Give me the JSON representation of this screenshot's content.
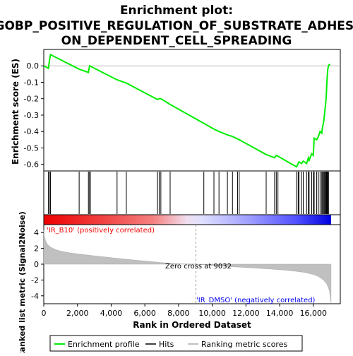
{
  "chart_data": {
    "type": "line",
    "title_lines": [
      "Enrichment plot:",
      "GOBP_POSITIVE_REGULATION_OF_SUBSTRATE_ADHESI",
      "ON_DEPENDENT_CELL_SPREADING"
    ],
    "top_panel": {
      "ylabel": "Enrichment score (ES)",
      "ylim": [
        -0.64,
        0.1
      ],
      "yticks": [
        0.0,
        -0.1,
        -0.2,
        -0.3,
        -0.4,
        -0.5,
        -0.6
      ],
      "ytick_labels": [
        "0.0",
        "-0.1",
        "-0.2",
        "-0.3",
        "-0.4",
        "-0.5",
        "-0.6"
      ],
      "series": [
        {
          "name": "Enrichment profile",
          "color": "#00ee00",
          "x": [
            0,
            280,
            330,
            400,
            2100,
            2650,
            2720,
            4350,
            4900,
            6750,
            6850,
            6950,
            7500,
            9500,
            10100,
            10400,
            10900,
            11200,
            11500,
            11600,
            13200,
            13700,
            13800,
            13900,
            15000,
            15100,
            15150,
            15300,
            15400,
            15600,
            15700,
            15750,
            15900,
            16000,
            16050,
            16200,
            16300,
            16400,
            16500,
            16550,
            16600,
            16650,
            16700,
            16750,
            16780,
            16800,
            16830,
            16860,
            16900,
            16950,
            17000
          ],
          "y": [
            0.0,
            -0.015,
            0.03,
            0.068,
            -0.02,
            -0.04,
            0.0,
            -0.085,
            -0.105,
            -0.205,
            -0.2,
            -0.2,
            -0.235,
            -0.35,
            -0.385,
            -0.4,
            -0.42,
            -0.43,
            -0.445,
            -0.45,
            -0.54,
            -0.56,
            -0.545,
            -0.55,
            -0.615,
            -0.595,
            -0.585,
            -0.595,
            -0.58,
            -0.595,
            -0.56,
            -0.575,
            -0.535,
            -0.545,
            -0.44,
            -0.45,
            -0.43,
            -0.4,
            -0.41,
            -0.37,
            -0.35,
            -0.31,
            -0.26,
            -0.21,
            -0.16,
            -0.11,
            -0.06,
            -0.02,
            0.0,
            0.008,
            0.005
          ]
        }
      ]
    },
    "hits": {
      "name": "Hits",
      "positions": [
        280,
        330,
        400,
        2100,
        2650,
        2720,
        2760,
        4350,
        4900,
        6750,
        6850,
        6950,
        7500,
        9500,
        10100,
        10400,
        10900,
        11200,
        11500,
        11600,
        13200,
        13700,
        13800,
        13900,
        15000,
        15100,
        15150,
        15300,
        15400,
        15600,
        15700,
        15750,
        15900,
        16000,
        16050,
        16200,
        16300,
        16400,
        16500,
        16550,
        16600,
        16650,
        16700,
        16750,
        16780,
        16800,
        16830,
        16860,
        16900
      ]
    },
    "bottom_panel": {
      "ylabel": "Ranked list metric (Signal2Noise)",
      "ylim": [
        -5,
        5
      ],
      "yticks": [
        4,
        2,
        0,
        -2,
        -4
      ],
      "ytick_labels": [
        "4",
        "2",
        "0",
        "-2",
        "-4"
      ],
      "series_name": "Ranking metric scores",
      "metric_curve": {
        "x": [
          0,
          30,
          100,
          200,
          400,
          700,
          1000,
          1500,
          2000,
          3000,
          4000,
          5000,
          6000,
          7000,
          8000,
          9032,
          10000,
          11000,
          12000,
          13000,
          14000,
          15000,
          15500,
          16000,
          16300,
          16600,
          16800,
          16950,
          17050
        ],
        "y": [
          4.3,
          3.6,
          3.0,
          2.55,
          2.15,
          1.85,
          1.65,
          1.45,
          1.3,
          1.05,
          0.82,
          0.6,
          0.4,
          0.2,
          0.05,
          0.0,
          -0.15,
          -0.3,
          -0.42,
          -0.55,
          -0.7,
          -0.9,
          -1.05,
          -1.3,
          -1.55,
          -2.0,
          -2.5,
          -3.3,
          -4.9
        ]
      },
      "pos_label": "'IR_B10' (positively correlated)",
      "neg_label": "'IR_DMSO' (negatively correlated)",
      "zero_cross_label": "Zero cross at 9032",
      "zero_cross": 9032
    },
    "xaxis": {
      "label": "Rank in Ordered Dataset",
      "xlim": [
        0,
        17600
      ],
      "ticks": [
        0,
        2000,
        4000,
        6000,
        8000,
        10000,
        12000,
        14000,
        16000
      ],
      "tick_labels": [
        "0",
        "2,000",
        "4,000",
        "6,000",
        "8,000",
        "10,000",
        "12,000",
        "14,000",
        "16,000"
      ]
    },
    "legend": {
      "position": "bottom",
      "items": [
        {
          "label": "Enrichment profile",
          "color": "#00ee00"
        },
        {
          "label": "Hits",
          "color": "#000000"
        },
        {
          "label": "Ranking metric scores",
          "color": "#c0c0c0"
        }
      ]
    },
    "colors": {
      "profile": "#00ee00",
      "metric_fill": "#c0c0c0",
      "heat_red": "#ee0000",
      "heat_blue": "#0000ee",
      "zero_line": "#000000"
    }
  }
}
